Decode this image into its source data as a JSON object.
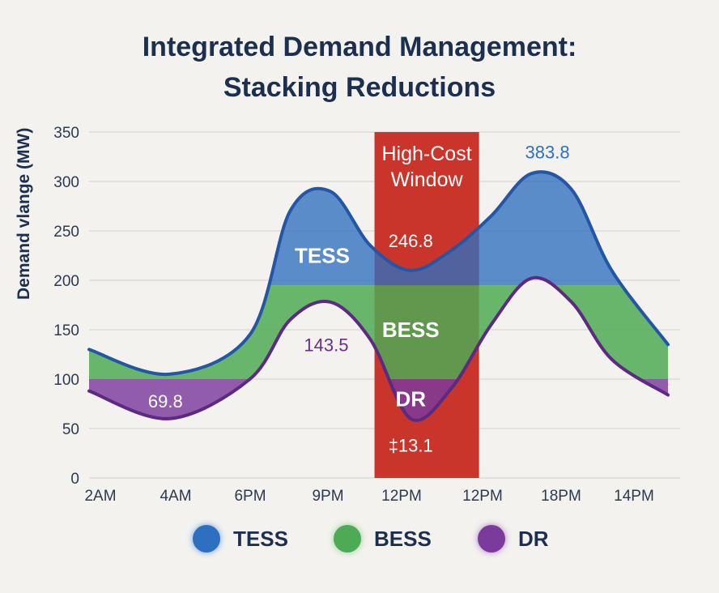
{
  "title_lines": [
    "Integrated Demand Management:",
    "Stacking Reductions"
  ],
  "chart_data": {
    "type": "area",
    "ylabel": "Demand vlange (MW)",
    "ylim": [
      0,
      350
    ],
    "yticks": [
      0,
      50,
      100,
      150,
      200,
      250,
      300,
      350
    ],
    "x_labels": [
      "2AM",
      "4AM",
      "6PM",
      "9PM",
      "12PM",
      "12PM",
      "18PM",
      "14PM"
    ],
    "grid": true,
    "series": [
      {
        "name": "TESS",
        "color": "#2f6fc0",
        "x": [
          0,
          1,
          2,
          2.5,
          3,
          3.5,
          4,
          4.5,
          5,
          5.5,
          6,
          6.5,
          7.2
        ],
        "values": [
          130,
          105,
          145,
          270,
          290,
          235,
          210,
          230,
          265,
          308,
          292,
          210,
          135
        ]
      },
      {
        "name": "BESS",
        "color": "#4faa55",
        "x": [
          0,
          1,
          2,
          2.5,
          3,
          3.5,
          4,
          4.5,
          5,
          5.5,
          6,
          6.5,
          7.2
        ],
        "values": [
          120,
          100,
          130,
          168,
          178,
          140,
          60,
          90,
          155,
          202,
          178,
          130,
          95
        ]
      },
      {
        "name": "DR",
        "color": "#7a3b9c",
        "x": [
          0,
          1,
          2,
          2.5,
          3,
          3.5,
          4,
          4.5,
          5,
          5.5,
          6,
          6.5,
          7.2
        ],
        "values": [
          88,
          60,
          100,
          160,
          178,
          140,
          60,
          90,
          155,
          202,
          178,
          120,
          84
        ]
      }
    ],
    "band_levels": {
      "TESS_BESS": 195,
      "BESS_DR": 100
    },
    "highlight": {
      "label_lines": [
        "High-Cost",
        "Window"
      ],
      "x_start": 3.55,
      "x_end": 4.85,
      "color": "#c9342b"
    },
    "annotations": [
      {
        "text": "383.8",
        "x": 5.7,
        "y": 330,
        "color": "#2f6fc0"
      },
      {
        "text": "246.8",
        "x": 4.0,
        "y": 240,
        "color": "#ffffff"
      },
      {
        "text": "143.5",
        "x": 2.95,
        "y": 135,
        "color": "#6a2d8a"
      },
      {
        "text": "69.8",
        "x": 0.95,
        "y": 78,
        "color": "#ffffff"
      },
      {
        "text": "‡13.1",
        "x": 4.0,
        "y": 33,
        "color": "#ffffff"
      }
    ],
    "band_labels": [
      {
        "text": "TESS",
        "x": 2.9,
        "y": 225
      },
      {
        "text": "BESS",
        "x": 4.0,
        "y": 150
      },
      {
        "text": "DR",
        "x": 4.0,
        "y": 80
      }
    ]
  },
  "legend": [
    {
      "label": "TESS",
      "color": "#2f6fc0"
    },
    {
      "label": "BESS",
      "color": "#4faa55"
    },
    {
      "label": "DR",
      "color": "#7a3b9c"
    }
  ]
}
